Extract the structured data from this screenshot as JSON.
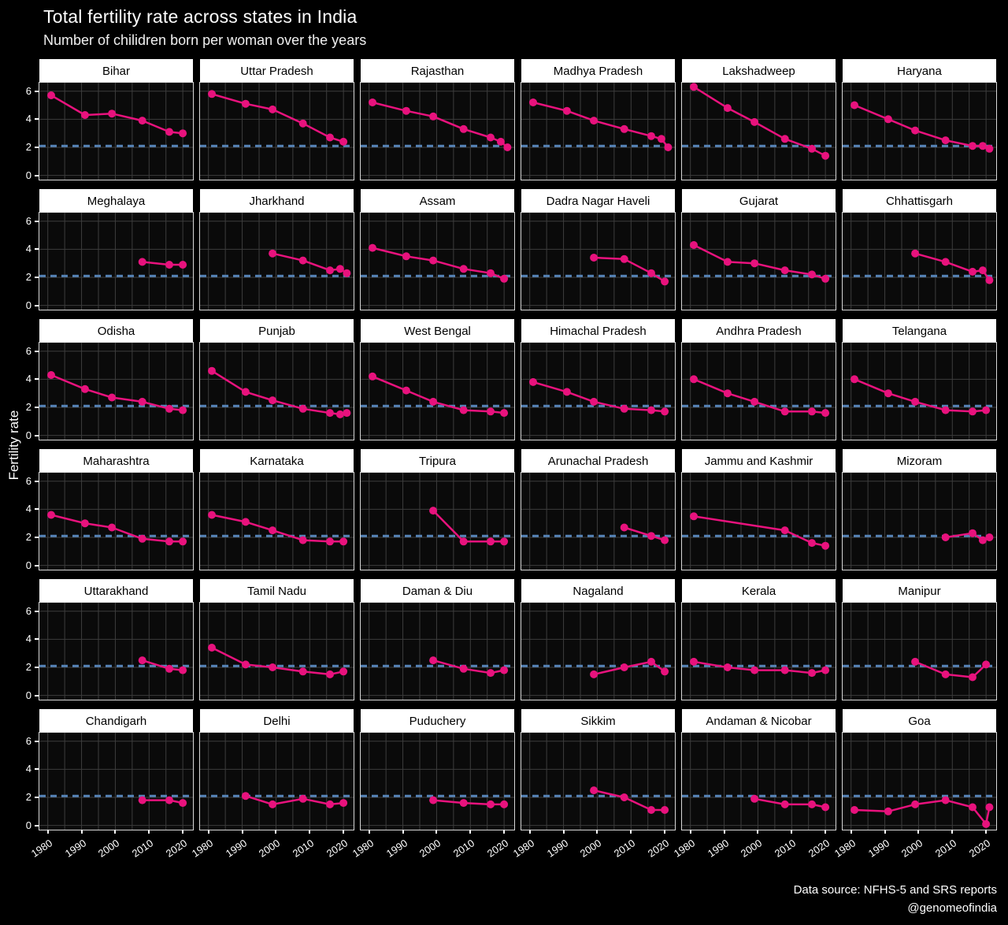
{
  "title": "Total fertility rate across states in India",
  "subtitle": "Number of chilidren born per woman over the years",
  "y_axis_label": "Fertility rate",
  "footer": {
    "source": "Data source: NFHS-5 and SRS reports",
    "handle": "@genomeofindia"
  },
  "colors": {
    "page_bg": "#000000",
    "panel_bg": "#0a0a0a",
    "panel_border": "#d8d8d8",
    "grid": "#3d3d3d",
    "line": "#e8127d",
    "point": "#e8127d",
    "replacement_line": "#5684b8",
    "strip_bg": "#ffffff",
    "strip_text": "#000000",
    "axis_text": "#ffffff"
  },
  "chart_data": {
    "type": "line",
    "title": "Total fertility rate across states in India",
    "xlabel": "",
    "ylabel": "Fertility rate",
    "x_ticks": [
      1980,
      1990,
      2000,
      2010,
      2020
    ],
    "y_ticks": [
      0,
      2,
      4,
      6
    ],
    "x_range": [
      1977.5,
      2023
    ],
    "y_range": [
      -0.3,
      6.6
    ],
    "grid": true,
    "x_minor_step": 5,
    "replacement_level": 2.1,
    "facets": [
      {
        "state": "Bihar",
        "years": [
          1981,
          1991,
          1999,
          2008,
          2016,
          2020
        ],
        "tfr": [
          5.7,
          4.3,
          4.4,
          3.9,
          3.1,
          3.0
        ]
      },
      {
        "state": "Uttar Pradesh",
        "years": [
          1981,
          1991,
          1999,
          2008,
          2016,
          2020
        ],
        "tfr": [
          5.8,
          5.1,
          4.7,
          3.7,
          2.7,
          2.4
        ]
      },
      {
        "state": "Rajasthan",
        "years": [
          1981,
          1991,
          1999,
          2008,
          2016,
          2019,
          2021
        ],
        "tfr": [
          5.2,
          4.6,
          4.2,
          3.3,
          2.7,
          2.4,
          2.0
        ]
      },
      {
        "state": "Madhya Pradesh",
        "years": [
          1981,
          1991,
          1999,
          2008,
          2016,
          2019,
          2021
        ],
        "tfr": [
          5.2,
          4.6,
          3.9,
          3.3,
          2.8,
          2.6,
          2.0
        ]
      },
      {
        "state": "Lakshadweep",
        "years": [
          1981,
          1991,
          1999,
          2008,
          2016,
          2020
        ],
        "tfr": [
          6.3,
          4.8,
          3.8,
          2.6,
          1.9,
          1.4
        ]
      },
      {
        "state": "Haryana",
        "years": [
          1981,
          1991,
          1999,
          2008,
          2016,
          2019,
          2021
        ],
        "tfr": [
          5.0,
          4.0,
          3.2,
          2.5,
          2.1,
          2.1,
          1.9
        ]
      },
      {
        "state": "Meghalaya",
        "years": [
          2008,
          2016,
          2020
        ],
        "tfr": [
          3.1,
          2.9,
          2.9
        ]
      },
      {
        "state": "Jharkhand",
        "years": [
          1999,
          2008,
          2016,
          2019,
          2021
        ],
        "tfr": [
          3.7,
          3.2,
          2.5,
          2.6,
          2.3
        ]
      },
      {
        "state": "Assam",
        "years": [
          1981,
          1991,
          1999,
          2008,
          2016,
          2020
        ],
        "tfr": [
          4.1,
          3.5,
          3.2,
          2.6,
          2.3,
          1.9
        ]
      },
      {
        "state": "Dadra Nagar Haveli",
        "years": [
          1999,
          2008,
          2016,
          2020
        ],
        "tfr": [
          3.4,
          3.3,
          2.3,
          1.7
        ]
      },
      {
        "state": "Gujarat",
        "years": [
          1981,
          1991,
          1999,
          2008,
          2016,
          2020
        ],
        "tfr": [
          4.3,
          3.1,
          3.0,
          2.5,
          2.2,
          1.9
        ]
      },
      {
        "state": "Chhattisgarh",
        "years": [
          1999,
          2008,
          2016,
          2019,
          2021
        ],
        "tfr": [
          3.7,
          3.1,
          2.4,
          2.5,
          1.8
        ]
      },
      {
        "state": "Odisha",
        "years": [
          1981,
          1991,
          1999,
          2008,
          2016,
          2020
        ],
        "tfr": [
          4.3,
          3.3,
          2.7,
          2.4,
          1.9,
          1.8
        ]
      },
      {
        "state": "Punjab",
        "years": [
          1981,
          1991,
          1999,
          2008,
          2016,
          2019,
          2021
        ],
        "tfr": [
          4.6,
          3.1,
          2.5,
          1.9,
          1.6,
          1.5,
          1.6
        ]
      },
      {
        "state": "West Bengal",
        "years": [
          1981,
          1991,
          1999,
          2008,
          2016,
          2020
        ],
        "tfr": [
          4.2,
          3.2,
          2.4,
          1.8,
          1.7,
          1.6
        ]
      },
      {
        "state": "Himachal Pradesh",
        "years": [
          1981,
          1991,
          1999,
          2008,
          2016,
          2020
        ],
        "tfr": [
          3.8,
          3.1,
          2.4,
          1.9,
          1.8,
          1.7
        ]
      },
      {
        "state": "Andhra Pradesh",
        "years": [
          1981,
          1991,
          1999,
          2008,
          2016,
          2020
        ],
        "tfr": [
          4.0,
          3.0,
          2.4,
          1.7,
          1.7,
          1.6
        ]
      },
      {
        "state": "Telangana",
        "years": [
          1981,
          1991,
          1999,
          2008,
          2016,
          2020
        ],
        "tfr": [
          4.0,
          3.0,
          2.4,
          1.8,
          1.7,
          1.8
        ]
      },
      {
        "state": "Maharashtra",
        "years": [
          1981,
          1991,
          1999,
          2008,
          2016,
          2020
        ],
        "tfr": [
          3.6,
          3.0,
          2.7,
          1.9,
          1.7,
          1.7
        ]
      },
      {
        "state": "Karnataka",
        "years": [
          1981,
          1991,
          1999,
          2008,
          2016,
          2020
        ],
        "tfr": [
          3.6,
          3.1,
          2.5,
          1.8,
          1.7,
          1.7
        ]
      },
      {
        "state": "Tripura",
        "years": [
          1999,
          2008,
          2016,
          2020
        ],
        "tfr": [
          3.9,
          1.7,
          1.7,
          1.7
        ]
      },
      {
        "state": "Arunachal Pradesh",
        "years": [
          2008,
          2016,
          2020
        ],
        "tfr": [
          2.7,
          2.1,
          1.8
        ]
      },
      {
        "state": "Jammu and Kashmir",
        "years": [
          1981,
          2008,
          2016,
          2020
        ],
        "tfr": [
          3.5,
          2.5,
          1.6,
          1.4
        ]
      },
      {
        "state": "Mizoram",
        "years": [
          2008,
          2016,
          2019,
          2021
        ],
        "tfr": [
          2.0,
          2.3,
          1.8,
          2.0
        ]
      },
      {
        "state": "Uttarakhand",
        "years": [
          2008,
          2016,
          2020
        ],
        "tfr": [
          2.5,
          1.9,
          1.8
        ]
      },
      {
        "state": "Tamil Nadu",
        "years": [
          1981,
          1991,
          1999,
          2008,
          2016,
          2020
        ],
        "tfr": [
          3.4,
          2.2,
          2.0,
          1.7,
          1.5,
          1.7
        ]
      },
      {
        "state": "Daman & Diu",
        "years": [
          1999,
          2008,
          2016,
          2020
        ],
        "tfr": [
          2.5,
          1.9,
          1.6,
          1.8
        ]
      },
      {
        "state": "Nagaland",
        "years": [
          1999,
          2008,
          2016,
          2020
        ],
        "tfr": [
          1.5,
          2.0,
          2.4,
          1.7
        ]
      },
      {
        "state": "Kerala",
        "years": [
          1981,
          1991,
          1999,
          2008,
          2016,
          2020
        ],
        "tfr": [
          2.4,
          2.0,
          1.8,
          1.8,
          1.6,
          1.8
        ]
      },
      {
        "state": "Manipur",
        "years": [
          1999,
          2008,
          2016,
          2020
        ],
        "tfr": [
          2.4,
          1.5,
          1.3,
          2.2
        ]
      },
      {
        "state": "Chandigarh",
        "years": [
          2008,
          2016,
          2020
        ],
        "tfr": [
          1.8,
          1.8,
          1.6
        ]
      },
      {
        "state": "Delhi",
        "years": [
          1991,
          1999,
          2008,
          2016,
          2020
        ],
        "tfr": [
          2.1,
          1.5,
          1.9,
          1.5,
          1.6
        ]
      },
      {
        "state": "Puduchery",
        "years": [
          1999,
          2008,
          2016,
          2020
        ],
        "tfr": [
          1.8,
          1.6,
          1.5,
          1.5
        ]
      },
      {
        "state": "Sikkim",
        "years": [
          1999,
          2008,
          2016,
          2020
        ],
        "tfr": [
          2.5,
          2.0,
          1.1,
          1.1
        ]
      },
      {
        "state": "Andaman & Nicobar",
        "years": [
          1999,
          2008,
          2016,
          2020
        ],
        "tfr": [
          1.9,
          1.5,
          1.5,
          1.3
        ]
      },
      {
        "state": "Goa",
        "years": [
          1981,
          1991,
          1999,
          2008,
          2016,
          2020,
          2021
        ],
        "tfr": [
          1.1,
          1.0,
          1.5,
          1.8,
          1.3,
          0.1,
          1.3
        ]
      }
    ]
  }
}
